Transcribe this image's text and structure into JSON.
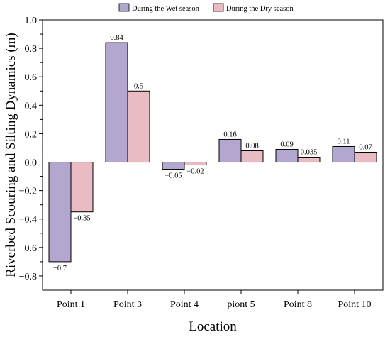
{
  "chart_data": {
    "type": "bar",
    "categories": [
      "Point 1",
      "Point 3",
      "Point 4",
      "piont 5",
      "Point 8",
      "Point 10"
    ],
    "series": [
      {
        "name": "During the Wet season",
        "values": [
          -0.7,
          0.84,
          -0.05,
          0.16,
          0.09,
          0.11
        ],
        "labels": [
          "−0.7",
          "0.84",
          "−0.05",
          "0.16",
          "0.09",
          "0.11"
        ],
        "color": "#b3a6cf"
      },
      {
        "name": "During the Dry season",
        "values": [
          -0.35,
          0.5,
          -0.02,
          0.08,
          0.035,
          0.07
        ],
        "labels": [
          "−0.35",
          "0.5",
          "−0.02",
          "0.08",
          "0.035",
          "0.07"
        ],
        "color": "#e9bcc4"
      }
    ],
    "xlabel": "Location",
    "ylabel": "Riverbed Scouring and Silting Dynamics (m)",
    "ylim": [
      -0.9,
      1.0
    ],
    "yticks": [
      -0.8,
      -0.6,
      -0.4,
      -0.2,
      0.0,
      0.2,
      0.4,
      0.6,
      0.8,
      1.0
    ],
    "ytick_labels": [
      "−0.8",
      "−0.6",
      "−0.4",
      "−0.2",
      "0.0",
      "0.2",
      "0.4",
      "0.6",
      "0.8",
      "1.0"
    ],
    "legend_position": "top-center",
    "grid": false
  }
}
